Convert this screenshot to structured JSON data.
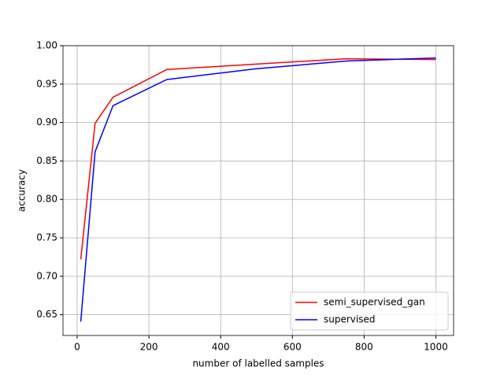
{
  "chart_data": {
    "type": "line",
    "xlabel": "number of labelled samples",
    "ylabel": "accuracy",
    "x": [
      10,
      50,
      100,
      250,
      500,
      750,
      1000
    ],
    "series": [
      {
        "name": "semi_supervised_gan",
        "color": "#ff0000",
        "values": [
          0.722,
          0.899,
          0.933,
          0.969,
          0.976,
          0.983,
          0.982
        ]
      },
      {
        "name": "supervised",
        "color": "#0000ff",
        "values": [
          0.641,
          0.862,
          0.922,
          0.956,
          0.97,
          0.98,
          0.984
        ]
      }
    ],
    "xlim": [
      -39.5,
      1049.5
    ],
    "xticks": [
      0,
      200,
      400,
      600,
      800,
      1000
    ],
    "ylim": [
      0.623,
      1.0
    ],
    "yticks": [
      0.65,
      {
        "value": 0.7,
        "label": "0.70"
      },
      0.75,
      {
        "value": 0.8,
        "label": "0.80"
      },
      0.85,
      {
        "value": 0.9,
        "label": "0.90"
      },
      0.95,
      {
        "value": 1.0,
        "label": "1.00"
      }
    ],
    "grid": true,
    "legend": "lower right"
  }
}
